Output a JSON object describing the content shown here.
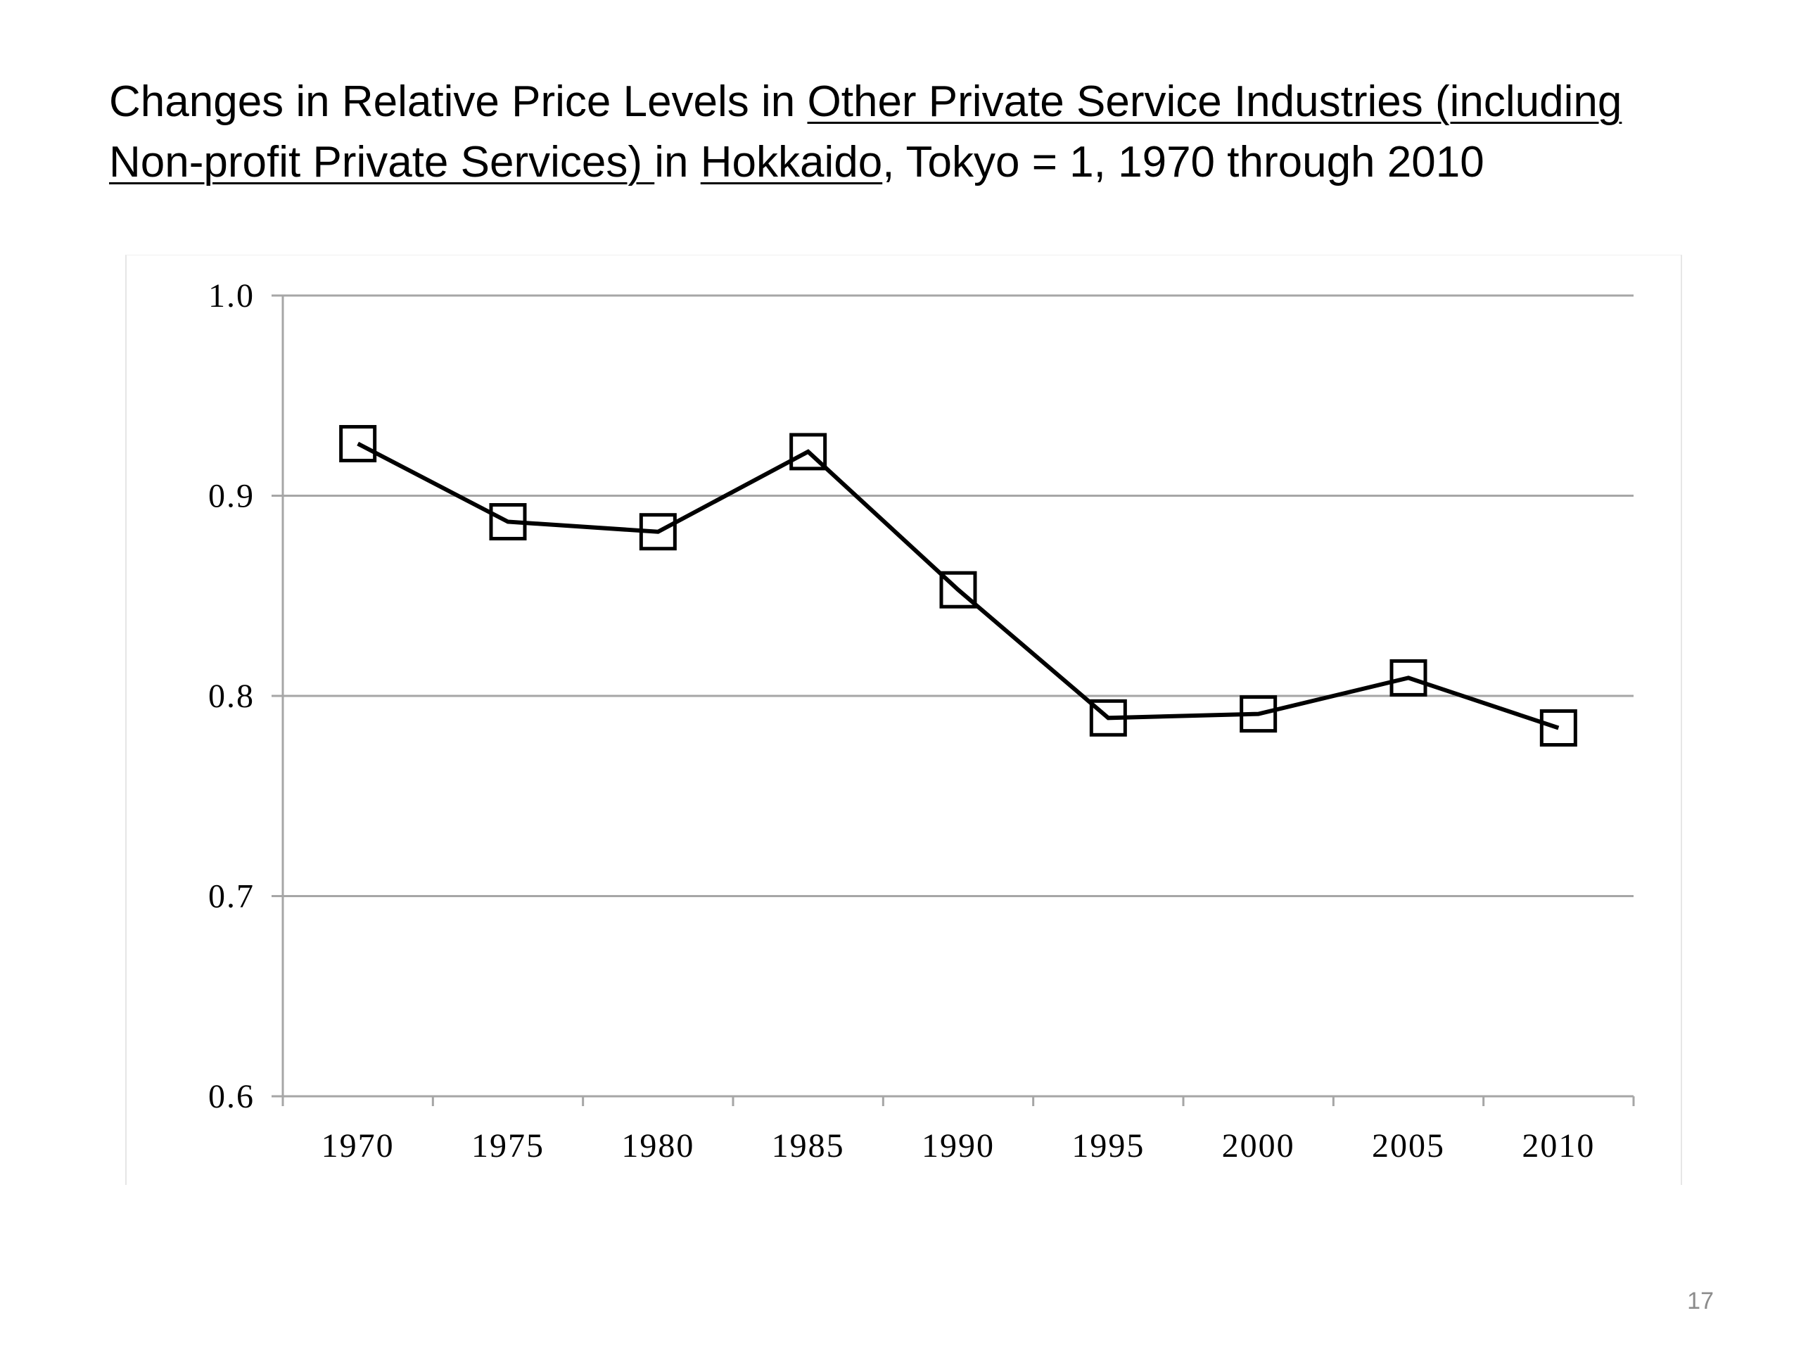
{
  "slide": {
    "title_parts": [
      {
        "text": "Changes in Relative Price Levels in ",
        "underline": false
      },
      {
        "text": "Other Private Service Industries (including Non-profit Private Services) ",
        "underline": true
      },
      {
        "text": "in ",
        "underline": false
      },
      {
        "text": "Hokkaido",
        "underline": true
      },
      {
        "text": ", Tokyo = 1, 1970 through 2010",
        "underline": false
      }
    ],
    "page_number": "17"
  },
  "chart_data": {
    "type": "line",
    "title": "",
    "xlabel": "",
    "ylabel": "",
    "categories": [
      "1970",
      "1975",
      "1980",
      "1985",
      "1990",
      "1995",
      "2000",
      "2005",
      "2010"
    ],
    "series": [
      {
        "values": [
          0.926,
          0.887,
          0.882,
          0.922,
          0.853,
          0.789,
          0.791,
          0.809,
          0.784
        ],
        "marker": "open-square",
        "color": "#000000"
      }
    ],
    "ylim": [
      0.6,
      1.0
    ],
    "yticks": [
      "1.0",
      "0.9",
      "0.8",
      "0.7",
      "0.6"
    ],
    "grid": "horizontal",
    "legend": "none",
    "colors": {
      "gridline": "#a6a6a6",
      "axis": "#a6a6a6",
      "series": "#000000"
    }
  }
}
